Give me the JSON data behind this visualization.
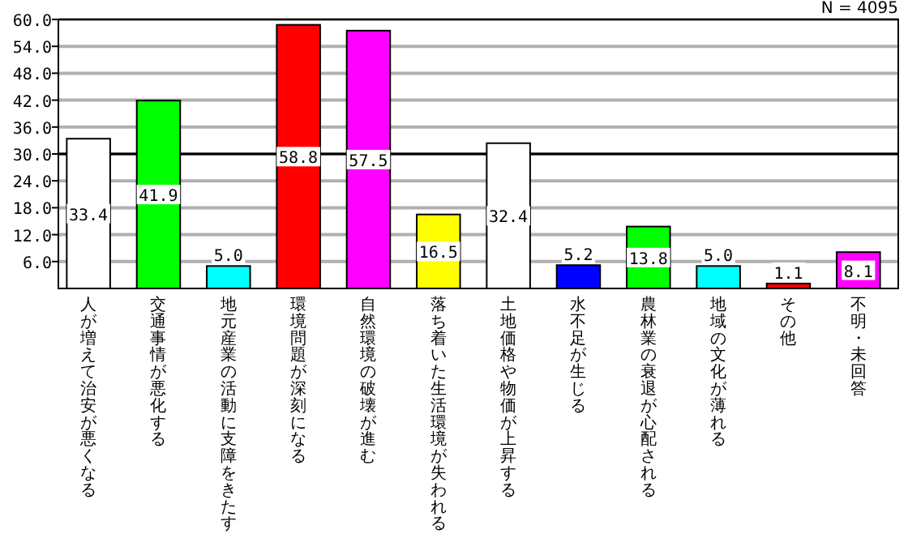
{
  "chart_data": {
    "type": "bar",
    "categories": [
      "人が増えて治安が悪くなる",
      "交通事情が悪化する",
      "地元産業の活動に支障をきたす",
      "環境問題が深刻になる",
      "自然環境の破壊が進む",
      "落ち着いた生活環境が失われる",
      "土地価格や物価が上昇する",
      "水不足が生じる",
      "農林業の衰退が心配される",
      "地域の文化が薄れる",
      "その他",
      "不明・未回答"
    ],
    "values": [
      33.4,
      41.9,
      5.0,
      58.8,
      57.5,
      16.5,
      32.4,
      5.2,
      13.8,
      5.0,
      1.1,
      8.1
    ],
    "value_labels": [
      "33.4",
      "41.9",
      "5.0",
      "58.8",
      "57.5",
      "16.5",
      "32.4",
      "5.2",
      "13.8",
      "5.0",
      "1.1",
      "8.1"
    ],
    "colors": [
      "#ffffff",
      "#00ff00",
      "#00ffff",
      "#ff0000",
      "#ff00ff",
      "#ffff00",
      "#ffffff",
      "#0000ff",
      "#00ff00",
      "#00ffff",
      "#ff0000",
      "#ff00ff"
    ],
    "ylim": [
      0,
      60
    ],
    "yticks": [
      {
        "value": 6,
        "label": "6.0"
      },
      {
        "value": 12,
        "label": "12.0"
      },
      {
        "value": 18,
        "label": "18.0"
      },
      {
        "value": 24,
        "label": "24.0"
      },
      {
        "value": 30,
        "label": "30.0"
      },
      {
        "value": 36,
        "label": "36.0"
      },
      {
        "value": 42,
        "label": "42.0"
      },
      {
        "value": 48,
        "label": "48.0"
      },
      {
        "value": 54,
        "label": "54.0"
      },
      {
        "value": 60,
        "label": "60.0"
      }
    ],
    "grid": "y",
    "ref_lines": [
      {
        "axis": "y",
        "value": 30,
        "color": "#000000"
      }
    ],
    "annotations": [
      "N = 4095"
    ]
  }
}
